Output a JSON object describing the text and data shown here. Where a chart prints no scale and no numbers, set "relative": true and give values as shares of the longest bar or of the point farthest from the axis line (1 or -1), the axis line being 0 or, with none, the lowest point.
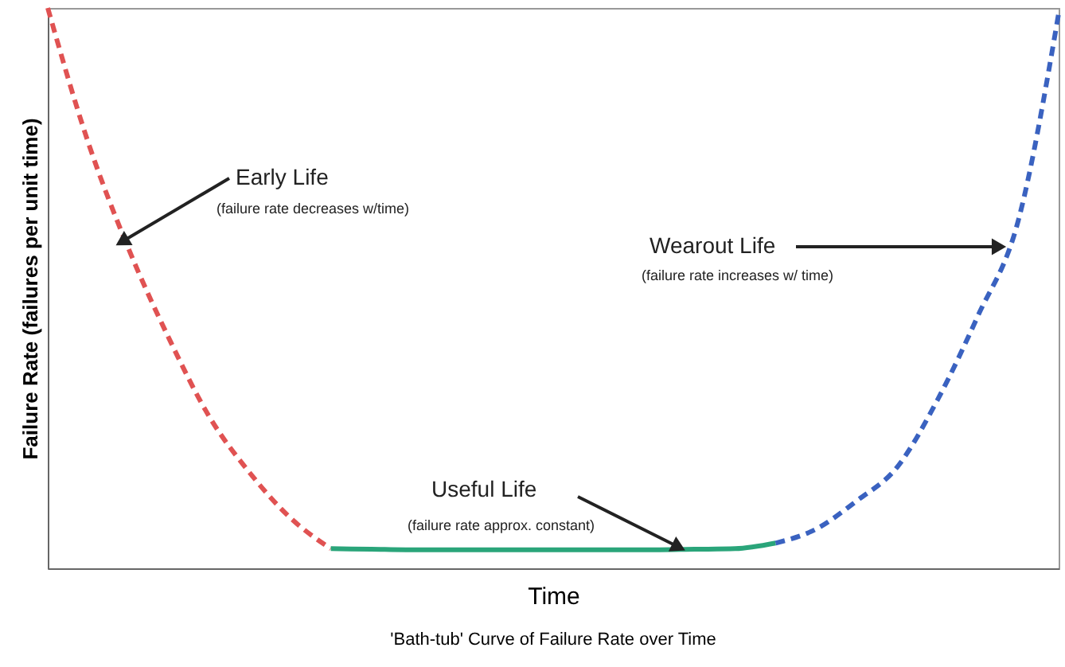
{
  "chart_data": {
    "type": "line",
    "relative": true,
    "title": "'Bath-tub' Curve of Failure Rate over Time",
    "xlabel": "Time",
    "ylabel": "Failure Rate (failures per unit time)",
    "categories": [
      null,
      null,
      null,
      null,
      null,
      null,
      null,
      null,
      null,
      null,
      null,
      null,
      null,
      null,
      null,
      null,
      null,
      null,
      null,
      null,
      null,
      null,
      null,
      null,
      null,
      null
    ],
    "series": [
      {
        "color": "#e05252",
        "line_style": "dashed",
        "values": [
          1,
          0.76,
          0.57,
          0.41,
          0.27,
          0.17,
          0.09,
          0.035,
          null,
          null,
          null,
          null,
          null,
          null,
          null,
          null,
          null,
          null,
          null,
          null,
          null,
          null,
          null,
          null,
          null,
          null
        ]
      },
      {
        "color": "#2aa57a",
        "line_style": "solid",
        "values": [
          null,
          null,
          null,
          null,
          null,
          null,
          null,
          0.035,
          0.034,
          0.033,
          0.033,
          0.033,
          0.033,
          0.033,
          0.033,
          0.033,
          0.034,
          0.035,
          0.045,
          null,
          null,
          null,
          null,
          null,
          null,
          null
        ]
      },
      {
        "color": "#3a62c0",
        "line_style": "dashed",
        "values": [
          null,
          null,
          null,
          null,
          null,
          null,
          null,
          null,
          null,
          null,
          null,
          null,
          null,
          null,
          null,
          null,
          null,
          null,
          0.045,
          0.07,
          0.12,
          0.18,
          0.3,
          0.45,
          0.62,
          0.99
        ]
      }
    ],
    "annotations": [
      "Early Life",
      "(failure rate decreases w/time)",
      "Wearout Life",
      "(failure rate increases w/ time)",
      "Useful Life",
      "(failure rate approx. constant)"
    ],
    "grid": false,
    "tick_labels": false
  }
}
